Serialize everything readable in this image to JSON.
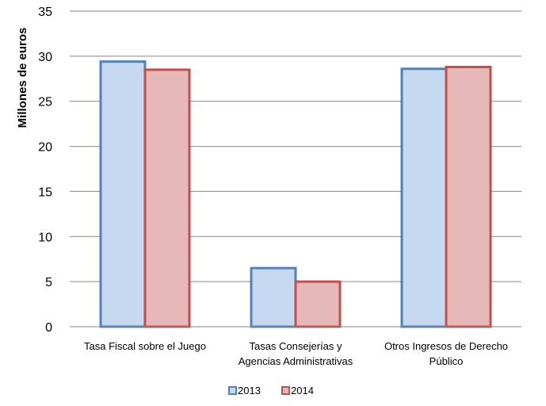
{
  "chart_data": {
    "type": "bar",
    "title": "",
    "xlabel": "",
    "ylabel": "Millones de euros",
    "ylim": [
      0,
      35
    ],
    "yticks": [
      0,
      5,
      10,
      15,
      20,
      25,
      30,
      35
    ],
    "grid": true,
    "legend_position": "bottom",
    "categories": [
      [
        "Tasa Fiscal sobre el Juego"
      ],
      [
        "Tasas Consejerías y",
        "Agencias Administrativas"
      ],
      [
        "Otros Ingresos de Derecho",
        "Público"
      ]
    ],
    "series": [
      {
        "name": "2013",
        "values": [
          29.4,
          6.5,
          28.6
        ],
        "fill": "#c6d9f1",
        "stroke": "#4f81bd"
      },
      {
        "name": "2014",
        "values": [
          28.5,
          5.0,
          28.8
        ],
        "fill": "#e6b9b8",
        "stroke": "#c0504d"
      }
    ]
  }
}
